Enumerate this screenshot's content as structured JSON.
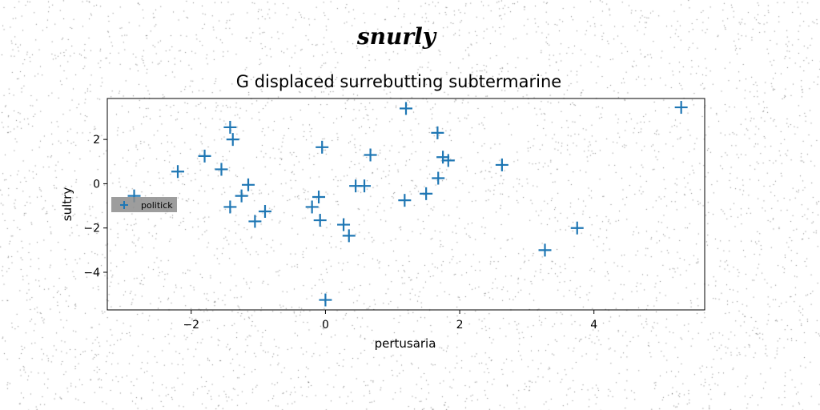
{
  "chart_data": {
    "type": "scatter",
    "suptitle": "snurly",
    "title": "G displaced surrebutting subtermarine",
    "xlabel": "pertusaria",
    "ylabel": "sultry",
    "xlim": [
      -3.25,
      5.65
    ],
    "ylim": [
      -5.7,
      3.85
    ],
    "xticks": [
      -2,
      0,
      2,
      4
    ],
    "xtick_labels": [
      "−2",
      "0",
      "2",
      "4"
    ],
    "yticks": [
      -4,
      -2,
      0,
      2
    ],
    "ytick_labels": [
      "−4",
      "−2",
      "0",
      "2"
    ],
    "grid": false,
    "legend_position": "center-left",
    "marker": "+",
    "color": "#1f77b4",
    "series": [
      {
        "name": "politick",
        "points": [
          [
            -2.85,
            -0.55
          ],
          [
            -2.2,
            0.55
          ],
          [
            -1.8,
            1.25
          ],
          [
            -1.55,
            0.65
          ],
          [
            -1.42,
            2.55
          ],
          [
            -1.38,
            2.0
          ],
          [
            -1.42,
            -1.05
          ],
          [
            -1.25,
            -0.55
          ],
          [
            -1.15,
            -0.05
          ],
          [
            -1.05,
            -1.7
          ],
          [
            -0.9,
            -1.25
          ],
          [
            -0.2,
            -1.05
          ],
          [
            -0.1,
            -0.6
          ],
          [
            -0.08,
            -1.65
          ],
          [
            -0.05,
            1.65
          ],
          [
            0.0,
            -5.25
          ],
          [
            0.27,
            -1.85
          ],
          [
            0.35,
            -2.35
          ],
          [
            0.45,
            -0.1
          ],
          [
            0.58,
            -0.1
          ],
          [
            0.67,
            1.3
          ],
          [
            1.18,
            -0.75
          ],
          [
            1.2,
            3.4
          ],
          [
            1.5,
            -0.45
          ],
          [
            1.67,
            2.3
          ],
          [
            1.68,
            0.25
          ],
          [
            1.75,
            1.2
          ],
          [
            1.83,
            1.05
          ],
          [
            2.63,
            0.85
          ],
          [
            3.27,
            -3.0
          ],
          [
            3.75,
            -2.0
          ],
          [
            5.3,
            3.45
          ]
        ]
      }
    ]
  }
}
